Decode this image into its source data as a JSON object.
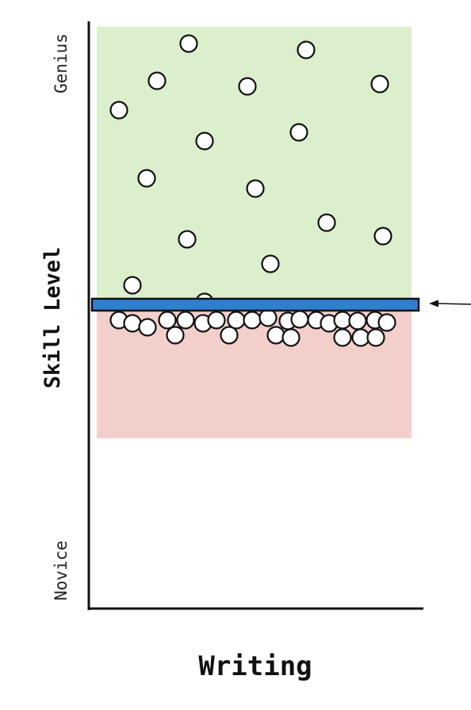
{
  "labels": {
    "y_top": "Genius",
    "y_bottom": "Novice",
    "y_axis_title": "Skill Level",
    "x_axis_title": "Writing"
  },
  "colors": {
    "upper_region": "#dcefcc",
    "lower_region": "#f3cfcc",
    "threshold_bar": "#2f7fd0",
    "dot_fill": "#ffffff",
    "stroke": "#111111"
  },
  "chart_data": {
    "type": "scatter",
    "xlabel": "Writing",
    "ylabel": "Skill Level",
    "y_tick_labels": [
      "Novice",
      "Genius"
    ],
    "threshold_marker": "horizontal bar with arrow pointing to it from the right"
  }
}
